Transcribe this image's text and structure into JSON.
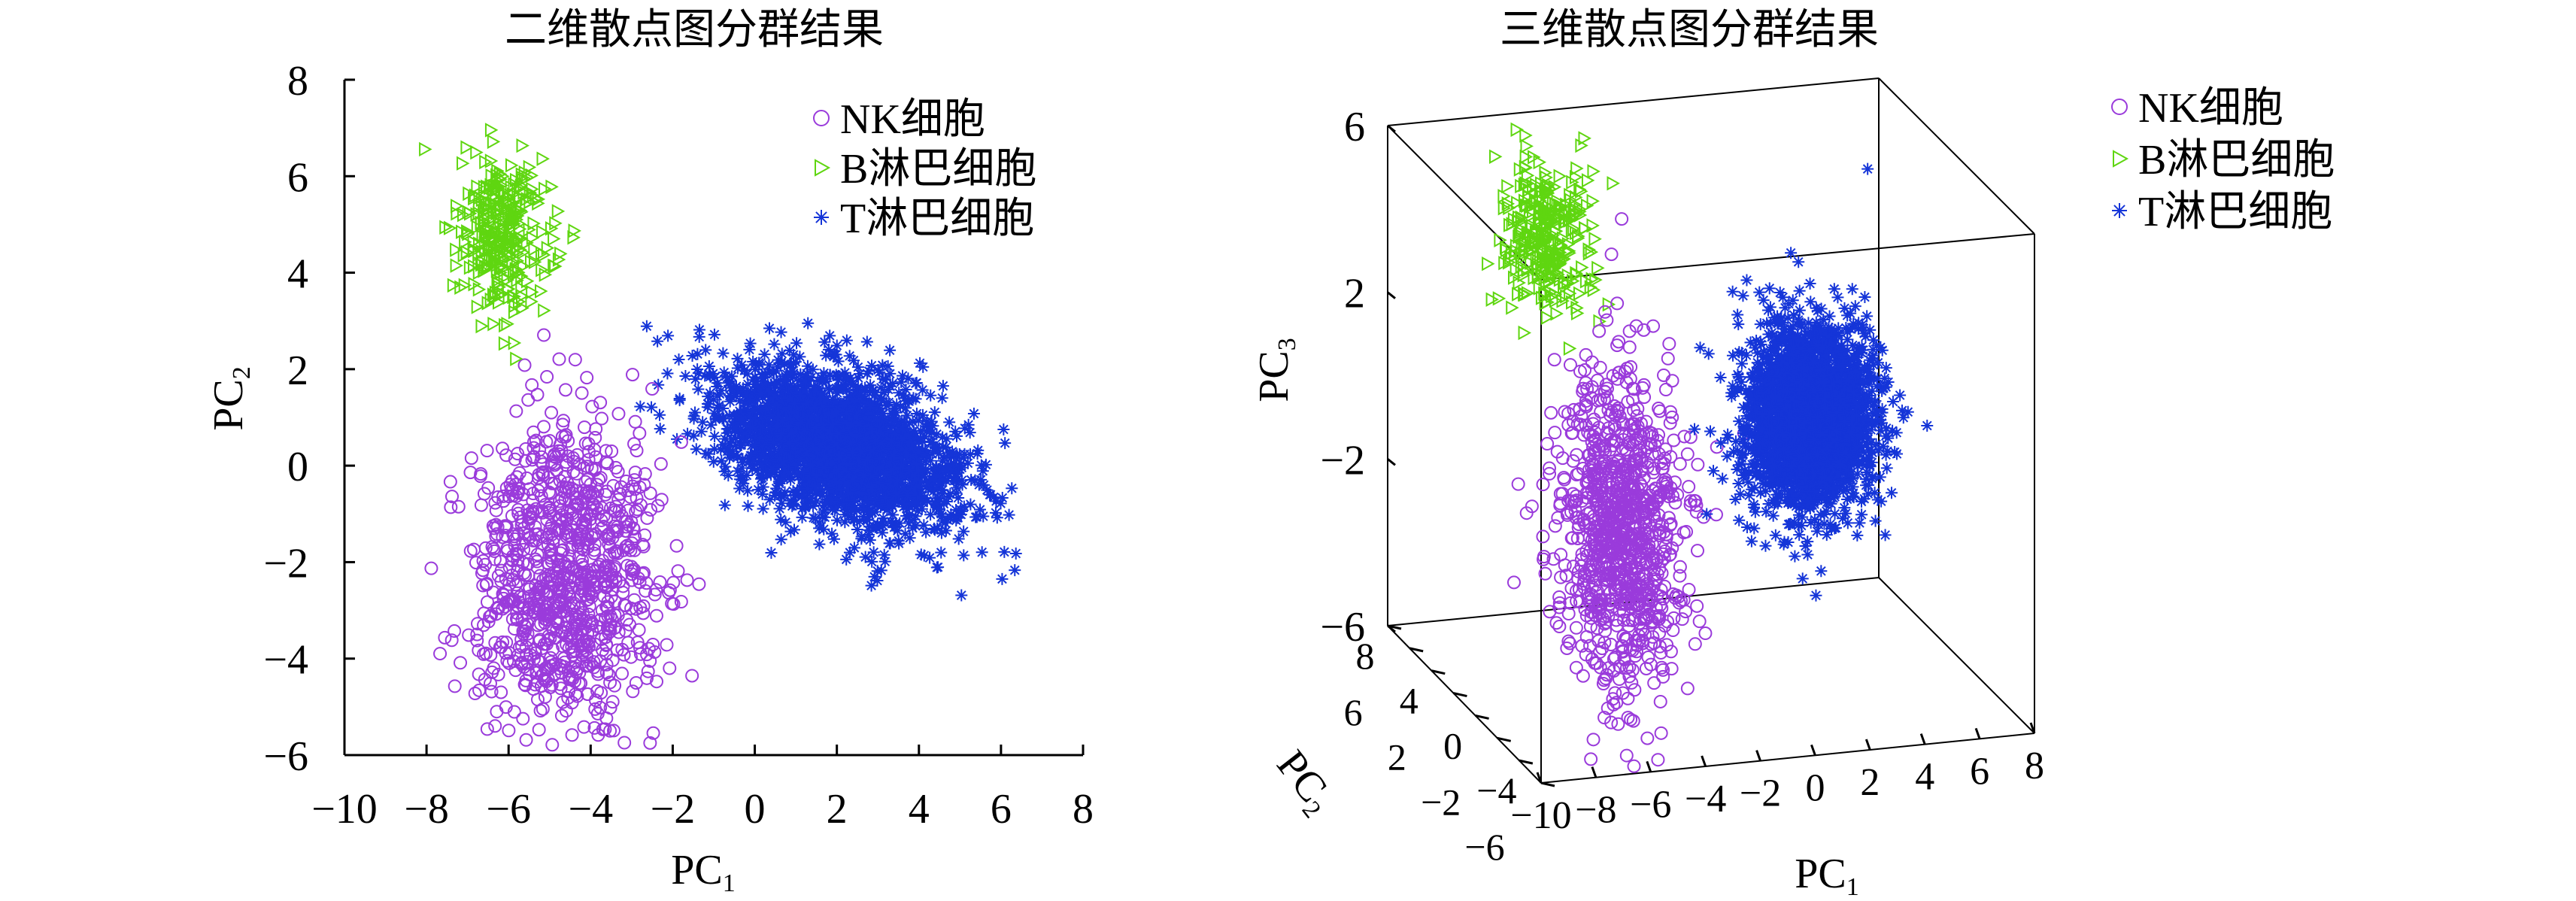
{
  "chart_data": [
    {
      "type": "scatter",
      "title": "二维散点图分群结果",
      "xlabel": {
        "text": "PC",
        "sub": "1"
      },
      "ylabel": {
        "text": "PC",
        "sub": "2"
      },
      "xlim": [
        -10,
        8
      ],
      "ylim": [
        -6,
        8
      ],
      "xticks": [
        "−10",
        "−8",
        "−6",
        "−4",
        "−2",
        "0",
        "2",
        "4",
        "6",
        "8"
      ],
      "yticks": [
        "−6",
        "−4",
        "−2",
        "0",
        "2",
        "4",
        "6",
        "8"
      ],
      "grid": false,
      "legend": "top-right",
      "series": [
        {
          "name": "NK细胞",
          "marker": "circle",
          "color": "#9A3BDB",
          "center": [
            -4.6,
            -2.3
          ],
          "spread": [
            1.1,
            1.6
          ],
          "approx_count": 1000
        },
        {
          "name": "B淋巴细胞",
          "marker": "triangle-right",
          "color": "#5FD610",
          "center": [
            -6.1,
            4.7
          ],
          "spread": [
            0.6,
            0.8
          ],
          "approx_count": 320
        },
        {
          "name": "T淋巴细胞",
          "marker": "asterisk",
          "color": "#1535D8",
          "center": [
            2.0,
            0.4
          ],
          "spread": [
            1.5,
            0.85
          ],
          "approx_count": 2500
        }
      ]
    },
    {
      "type": "scatter3d",
      "title": "三维散点图分群结果",
      "xlabel": {
        "text": "PC",
        "sub": "1"
      },
      "ylabel": {
        "text": "PC",
        "sub": "2"
      },
      "zlabel": {
        "text": "PC",
        "sub": "3"
      },
      "xlim": [
        -10,
        8
      ],
      "ylim": [
        -6,
        8
      ],
      "zlim": [
        -6,
        6
      ],
      "xticks": [
        "−10",
        "−8",
        "−6",
        "−4",
        "−2",
        "0",
        "2",
        "4",
        "6",
        "8"
      ],
      "yticks": [
        "8",
        "6",
        "4",
        "2",
        "0",
        "−2",
        "−4",
        "−6"
      ],
      "zticks": [
        "6",
        "2",
        "−2",
        "−6"
      ],
      "legend": "right",
      "series": [
        {
          "name": "NK细胞",
          "marker": "circle",
          "color": "#9A3BDB",
          "center": [
            -4.3,
            1.0,
            -2.2
          ],
          "spread": [
            1.0,
            1.2,
            1.8
          ],
          "approx_count": 1000
        },
        {
          "name": "B淋巴细胞",
          "marker": "triangle-right",
          "color": "#5FD610",
          "center": [
            -7.0,
            1.0,
            5.0
          ],
          "spread": [
            0.7,
            0.8,
            0.9
          ],
          "approx_count": 320
        },
        {
          "name": "T淋巴细胞",
          "marker": "asterisk",
          "color": "#1535D8",
          "center": [
            2.6,
            1.0,
            0.1
          ],
          "spread": [
            1.1,
            1.0,
            1.1
          ],
          "approx_count": 2500
        }
      ]
    }
  ]
}
